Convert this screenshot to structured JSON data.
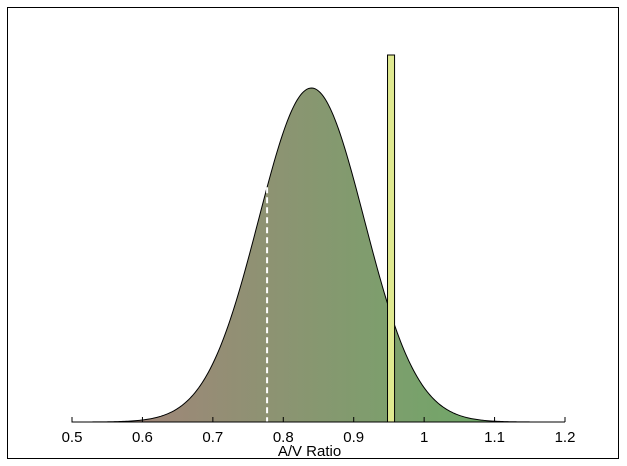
{
  "chart_data": {
    "type": "area",
    "xlabel": "A/V Ratio",
    "xlim": [
      0.5,
      1.2
    ],
    "ticks": [
      "0.5",
      "0.6",
      "0.7",
      "0.8",
      "0.9",
      "1",
      "1.1",
      "1.2"
    ],
    "tick_values": [
      0.5,
      0.6,
      0.7,
      0.8,
      0.9,
      1.0,
      1.1,
      1.2
    ],
    "distribution": {
      "mean": 0.84,
      "sd": 0.075,
      "support": [
        0.5,
        1.2
      ]
    },
    "gradient_colors": {
      "low": "#a97f7c",
      "high": "#64b064"
    },
    "dashed_marker_x": 0.777,
    "highlight_band": {
      "from": 0.948,
      "to": 0.958,
      "color": "#dfe990"
    },
    "grid": false
  }
}
